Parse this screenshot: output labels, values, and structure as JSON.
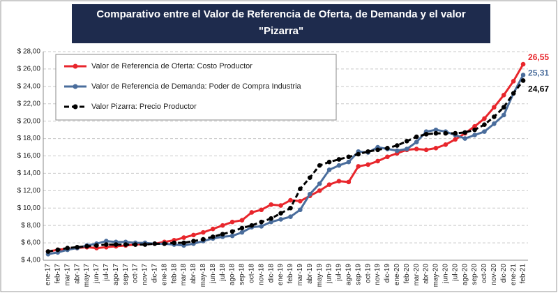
{
  "chart_data": {
    "type": "line",
    "title": [
      "Comparativo entre el Valor de Referencia de Oferta, de Demanda y el valor",
      "\"Pizarra\""
    ],
    "categories": [
      "ene-17",
      "feb-17",
      "mar-17",
      "abr-17",
      "may-17",
      "jun-17",
      "jul-17",
      "ago-17",
      "sep-17",
      "oct-17",
      "nov-17",
      "dic-17",
      "ene-18",
      "feb-18",
      "mar-18",
      "abr-18",
      "may-18",
      "jun-18",
      "jul-18",
      "ago-18",
      "sep-18",
      "oct-18",
      "nov-18",
      "dic-18",
      "ene-19",
      "feb-19",
      "mar-19",
      "abr-19",
      "may-19",
      "jun-19",
      "jul-19",
      "ago-19",
      "sep-19",
      "oct-19",
      "nov-19",
      "dic-19",
      "ene-20",
      "feb-20",
      "mar-20",
      "abr-20",
      "may-20",
      "jun-20",
      "jul-20",
      "ago-20",
      "sep-20",
      "oct-20",
      "nov-20",
      "dic-20",
      "ene-21",
      "feb-21"
    ],
    "series": [
      {
        "name": "Valor de Referencia de Oferta: Costo Productor",
        "color": "#e8262c",
        "dashed": false,
        "values": [
          5.0,
          5.2,
          5.3,
          5.4,
          5.5,
          5.4,
          5.5,
          5.6,
          5.7,
          5.8,
          5.9,
          5.9,
          6.1,
          6.3,
          6.6,
          6.9,
          7.2,
          7.6,
          8.0,
          8.4,
          8.6,
          9.5,
          9.8,
          10.4,
          10.3,
          10.9,
          10.8,
          11.4,
          12.0,
          12.7,
          13.1,
          13.0,
          14.8,
          15.0,
          15.4,
          15.9,
          16.3,
          16.7,
          16.8,
          16.7,
          16.9,
          17.3,
          17.9,
          18.6,
          19.4,
          20.3,
          21.6,
          23.0,
          24.6,
          26.55
        ],
        "value_labels": [
          null,
          null,
          null,
          null,
          null,
          null,
          null,
          null,
          null,
          null,
          null,
          null,
          null,
          null,
          null,
          null,
          null,
          null,
          null,
          null,
          null,
          null,
          null,
          null,
          null,
          null,
          null,
          null,
          null,
          null,
          null,
          null,
          null,
          null,
          null,
          null,
          null,
          null,
          null,
          null,
          null,
          null,
          null,
          null,
          null,
          null,
          null,
          null,
          null,
          "26,55"
        ]
      },
      {
        "name": "Valor de Referencia de Demanda: Poder de Compra Industria",
        "color": "#4a6d9c",
        "dashed": false,
        "values": [
          4.7,
          4.9,
          5.2,
          5.4,
          5.7,
          5.9,
          6.2,
          6.1,
          6.1,
          6.0,
          6.0,
          5.9,
          5.9,
          5.8,
          5.7,
          5.9,
          6.2,
          6.5,
          6.7,
          6.8,
          7.2,
          7.8,
          7.9,
          8.4,
          8.7,
          9.0,
          9.8,
          11.6,
          12.8,
          14.4,
          14.9,
          15.3,
          16.5,
          16.4,
          17.0,
          16.8,
          16.6,
          16.8,
          17.6,
          18.8,
          19.0,
          18.8,
          18.4,
          18.0,
          18.4,
          18.8,
          19.7,
          20.7,
          23.2,
          25.31
        ],
        "value_labels": [
          null,
          null,
          null,
          null,
          null,
          null,
          null,
          null,
          null,
          null,
          null,
          null,
          null,
          null,
          null,
          null,
          null,
          null,
          null,
          null,
          null,
          null,
          null,
          null,
          null,
          null,
          null,
          null,
          null,
          null,
          null,
          null,
          null,
          null,
          null,
          null,
          null,
          null,
          null,
          null,
          null,
          null,
          null,
          null,
          null,
          null,
          null,
          null,
          null,
          "25,31"
        ]
      },
      {
        "name": "Valor Pizarra: Precio Productor",
        "color": "#000000",
        "dashed": true,
        "values": [
          5.0,
          5.2,
          5.4,
          5.5,
          5.6,
          5.7,
          5.8,
          5.8,
          5.8,
          5.8,
          5.8,
          5.9,
          5.9,
          6.0,
          6.0,
          6.2,
          6.4,
          6.7,
          7.0,
          7.3,
          7.7,
          8.0,
          8.4,
          8.8,
          9.4,
          10.0,
          12.2,
          13.5,
          14.9,
          15.3,
          15.6,
          15.9,
          16.2,
          16.5,
          16.7,
          16.9,
          17.2,
          17.7,
          18.2,
          18.5,
          18.6,
          18.6,
          18.6,
          18.7,
          19.0,
          19.6,
          20.5,
          21.6,
          23.2,
          24.67
        ],
        "value_labels": [
          null,
          null,
          null,
          null,
          null,
          null,
          null,
          null,
          null,
          null,
          null,
          null,
          null,
          null,
          null,
          null,
          null,
          null,
          null,
          null,
          null,
          null,
          null,
          null,
          null,
          null,
          null,
          null,
          null,
          null,
          null,
          null,
          null,
          null,
          null,
          null,
          null,
          null,
          null,
          null,
          null,
          null,
          null,
          null,
          null,
          null,
          null,
          null,
          null,
          "24,67"
        ]
      }
    ],
    "ylim": [
      4,
      28
    ],
    "yticks": [
      {
        "value": 4,
        "label": "$ 4,00"
      },
      {
        "value": 6,
        "label": "$ 6,00"
      },
      {
        "value": 8,
        "label": "$ 8,00"
      },
      {
        "value": 10,
        "label": "$ 10,00"
      },
      {
        "value": 12,
        "label": "$ 12,00"
      },
      {
        "value": 14,
        "label": "$ 14,00"
      },
      {
        "value": 16,
        "label": "$ 16,00"
      },
      {
        "value": 18,
        "label": "$ 18,00"
      },
      {
        "value": 20,
        "label": "$ 20,00"
      },
      {
        "value": 22,
        "label": "$ 22,00"
      },
      {
        "value": 24,
        "label": "$ 24,00"
      },
      {
        "value": 26,
        "label": "$ 26,00"
      },
      {
        "value": 28,
        "label": "$ 28,00"
      }
    ],
    "grid": true,
    "legend": "upper left"
  }
}
